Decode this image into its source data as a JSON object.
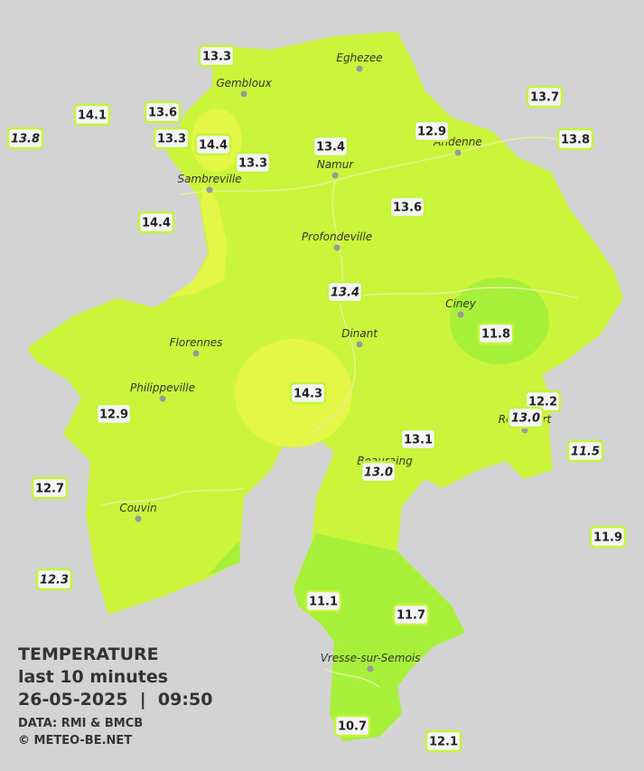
{
  "legend": {
    "title": "TEMPERATURE",
    "subtitle": "last 10 minutes",
    "datetime": "26-05-2025  |  09:50",
    "source": "DATA: RMI & BMCB",
    "credit": "© METEO-BE.NET"
  },
  "towns": [
    "Eghezee",
    "Gembloux",
    "Andenne",
    "Namur",
    "Sambreville",
    "Profondeville",
    "Ciney",
    "Dinant",
    "Florennes",
    "Philippeville",
    "Rochefort",
    "Beauraing",
    "Couvin",
    "Vresse-sur-Semois"
  ],
  "stations": [
    {
      "label": "13.3",
      "italic": false
    },
    {
      "label": "14.1",
      "italic": false
    },
    {
      "label": "13.6",
      "italic": false
    },
    {
      "label": "13.8",
      "italic": true
    },
    {
      "label": "13.3",
      "italic": false
    },
    {
      "label": "14.4",
      "italic": false
    },
    {
      "label": "13.3",
      "italic": false
    },
    {
      "label": "13.4",
      "italic": false
    },
    {
      "label": "12.9",
      "italic": false
    },
    {
      "label": "13.7",
      "italic": false
    },
    {
      "label": "13.8",
      "italic": false
    },
    {
      "label": "14.4",
      "italic": false
    },
    {
      "label": "13.6",
      "italic": false
    },
    {
      "label": "13.4",
      "italic": true
    },
    {
      "label": "11.8",
      "italic": false
    },
    {
      "label": "14.3",
      "italic": false
    },
    {
      "label": "12.2",
      "italic": false
    },
    {
      "label": "13.0",
      "italic": true
    },
    {
      "label": "12.9",
      "italic": false
    },
    {
      "label": "13.1",
      "italic": false
    },
    {
      "label": "13.0",
      "italic": true
    },
    {
      "label": "11.5",
      "italic": true
    },
    {
      "label": "12.7",
      "italic": false
    },
    {
      "label": "11.9",
      "italic": false
    },
    {
      "label": "12.3",
      "italic": true
    },
    {
      "label": "11.1",
      "italic": false
    },
    {
      "label": "11.7",
      "italic": false
    },
    {
      "label": "10.7",
      "italic": false
    },
    {
      "label": "12.1",
      "italic": false
    }
  ]
}
